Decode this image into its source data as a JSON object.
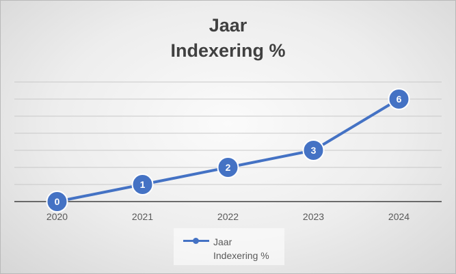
{
  "chart_data": {
    "type": "line",
    "title_lines": [
      "Jaar",
      "Indexering %"
    ],
    "categories": [
      "2020",
      "2021",
      "2022",
      "2023",
      "2024"
    ],
    "series": [
      {
        "name_lines": [
          "Jaar",
          "Indexering %"
        ],
        "values": [
          0,
          1,
          2,
          3,
          6
        ],
        "color": "#4472c4"
      }
    ],
    "ylim": [
      0,
      7
    ],
    "grid": true,
    "legend_position": "bottom"
  }
}
